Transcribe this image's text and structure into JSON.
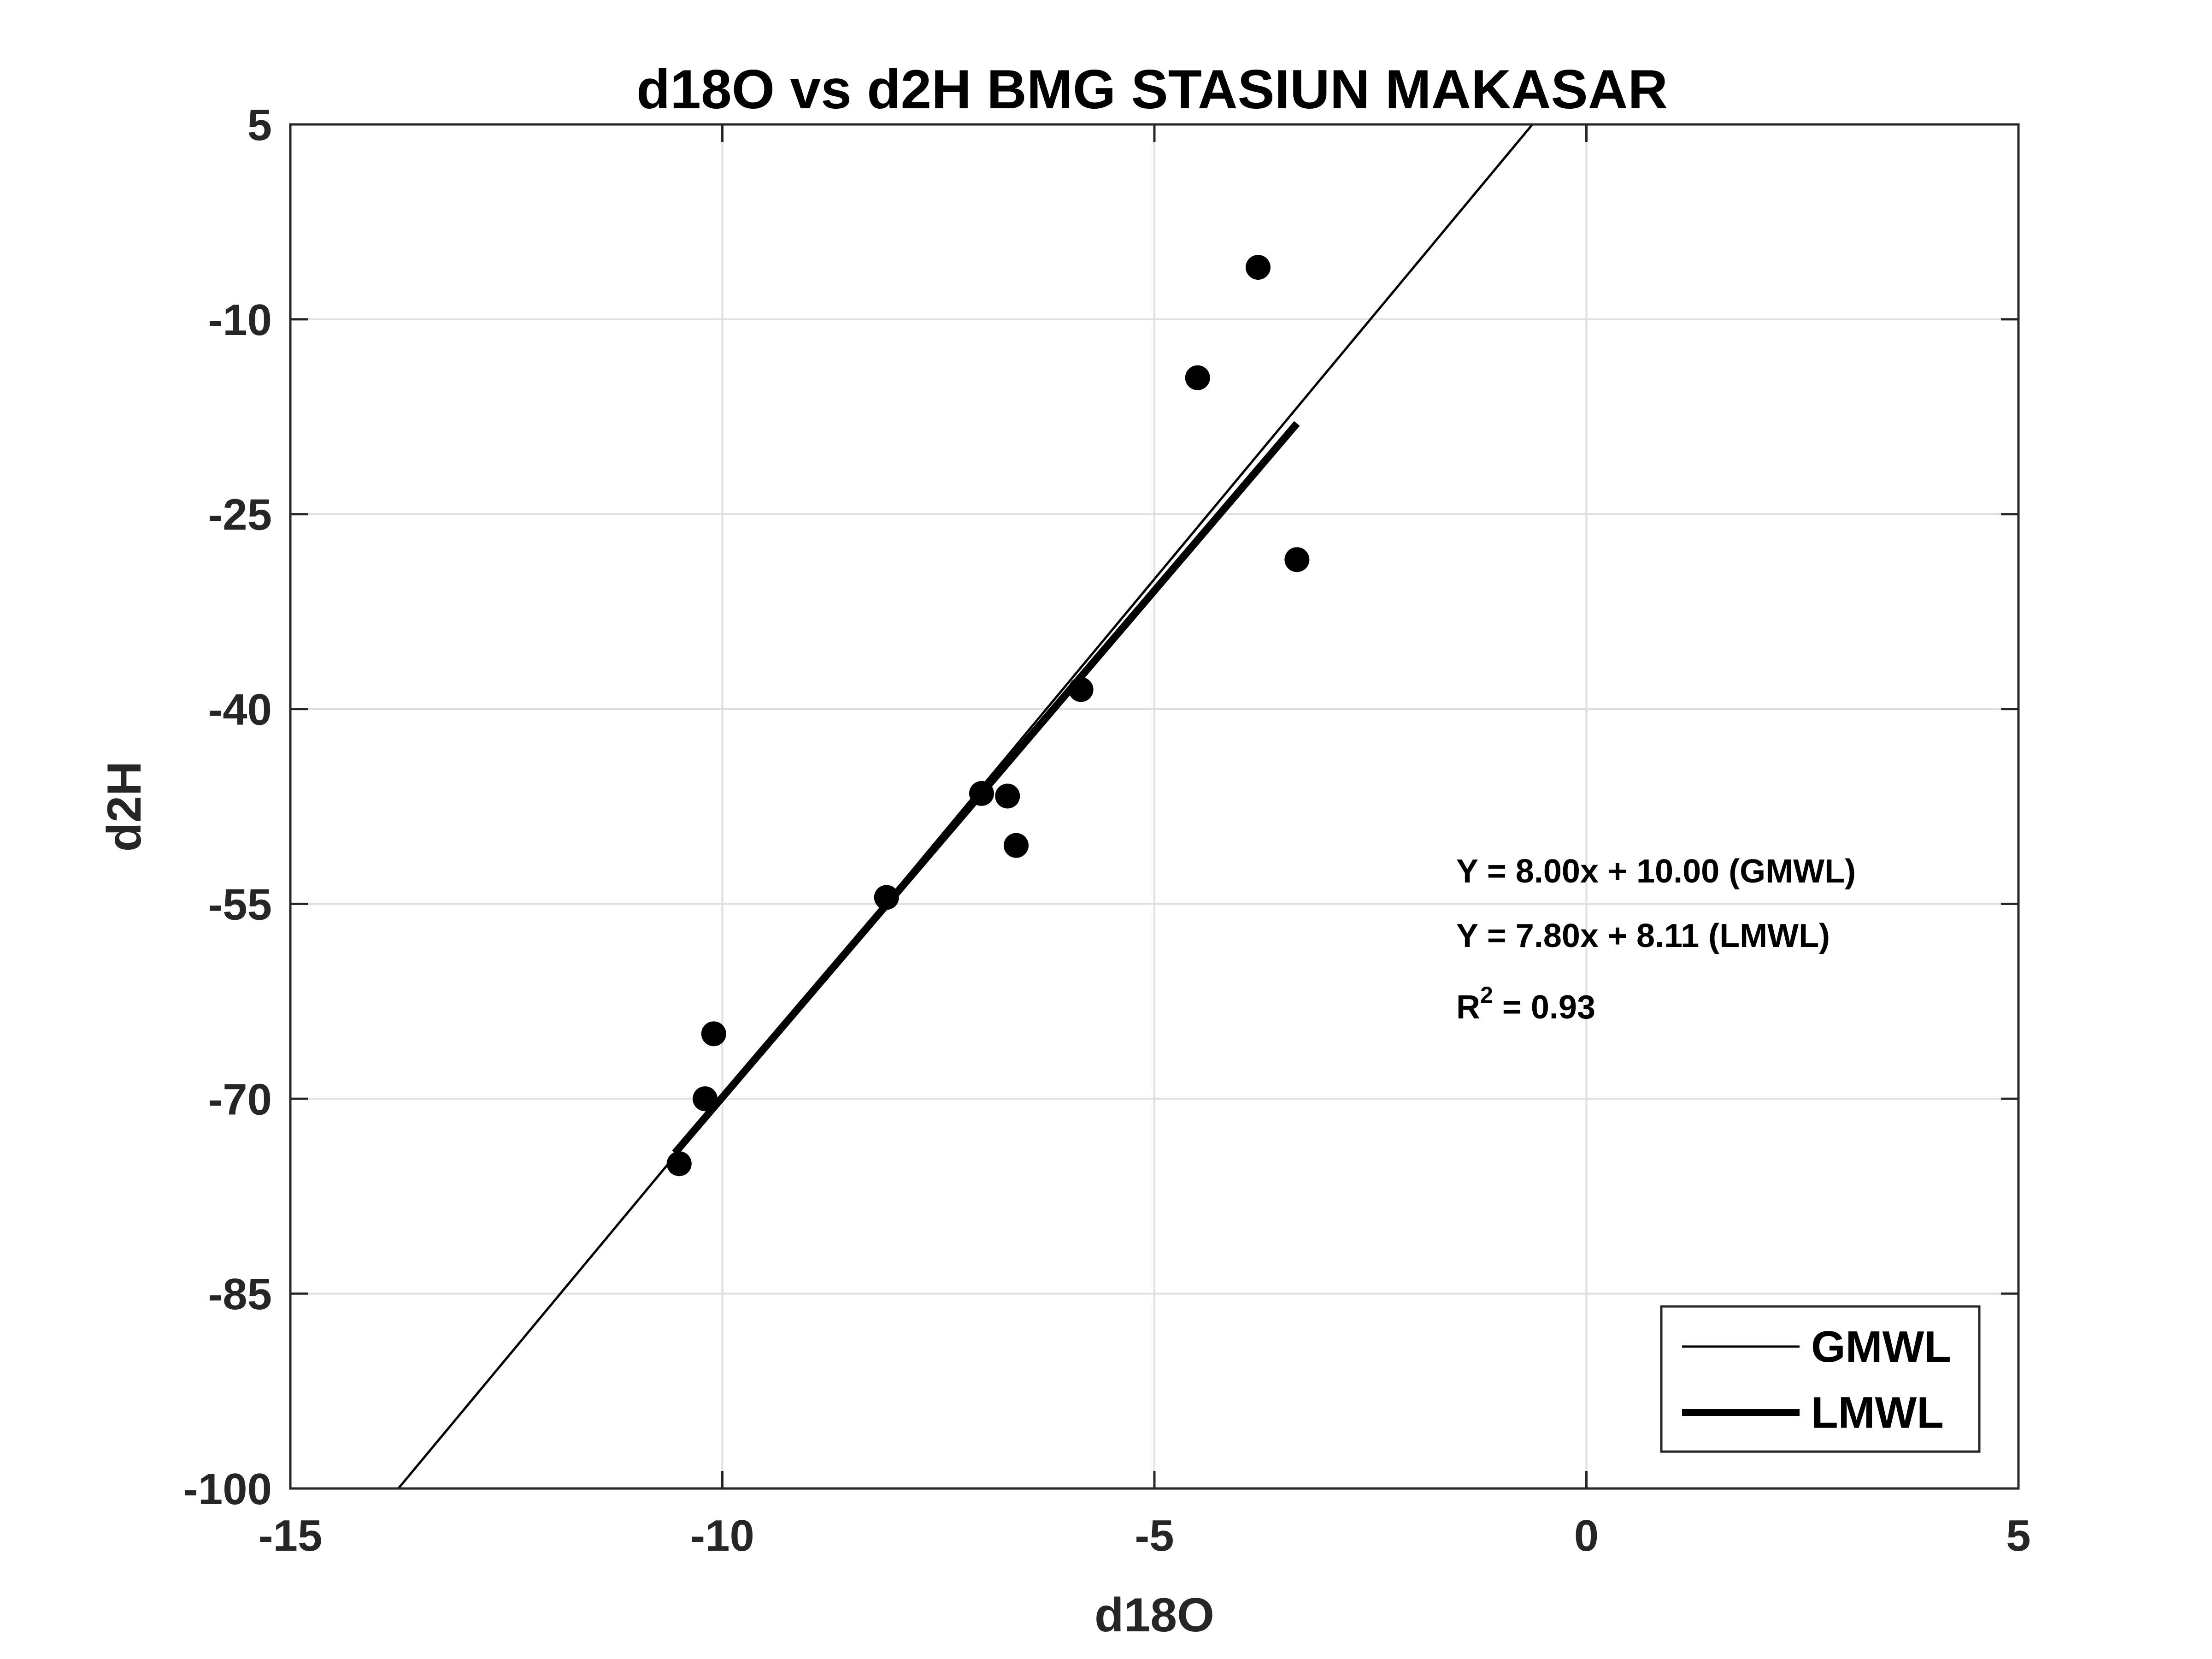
{
  "chart_data": {
    "type": "scatter",
    "title": "d18O vs d2H BMG STASIUN MAKASAR",
    "xlabel": "d18O",
    "ylabel": "d2H",
    "xlim": [
      -15,
      5
    ],
    "ylim": [
      -100,
      5
    ],
    "xticks": [
      -15,
      -10,
      -5,
      0,
      5
    ],
    "yticks": [
      5,
      -10,
      -25,
      -40,
      -55,
      -70,
      -85,
      -100
    ],
    "grid": true,
    "points": [
      {
        "x": -10.5,
        "y": -75.0
      },
      {
        "x": -10.2,
        "y": -70.0
      },
      {
        "x": -10.1,
        "y": -65.0
      },
      {
        "x": -8.1,
        "y": -54.5
      },
      {
        "x": -7.0,
        "y": -46.5
      },
      {
        "x": -6.7,
        "y": -46.7
      },
      {
        "x": -6.6,
        "y": -50.5
      },
      {
        "x": -5.85,
        "y": -38.5
      },
      {
        "x": -4.5,
        "y": -14.5
      },
      {
        "x": -3.8,
        "y": -6.0
      },
      {
        "x": -3.35,
        "y": -28.5
      }
    ],
    "series": [
      {
        "name": "GMWL",
        "slope": 8.0,
        "intercept": 10.0,
        "x_range": [
          -15,
          5
        ],
        "stroke": "#000000",
        "width": 5
      },
      {
        "name": "LMWL",
        "slope": 7.8,
        "intercept": 8.11,
        "x_range": [
          -10.55,
          -3.35
        ],
        "stroke": "#000000",
        "width": 16
      }
    ],
    "annotations": {
      "gmwl_equation": "Y = 8.00x + 10.00 (GMWL)",
      "lmwl_equation": "Y = 7.80x + 8.11 (LMWL)",
      "r2_prefix": "R",
      "r2_sup": "2",
      "r2_value": " = 0.93"
    },
    "legend": {
      "position": "bottom-right",
      "entries": [
        "GMWL",
        "LMWL"
      ]
    },
    "colors": {
      "points": "#000000",
      "grid": "#dedede",
      "axes": "#262626"
    }
  }
}
